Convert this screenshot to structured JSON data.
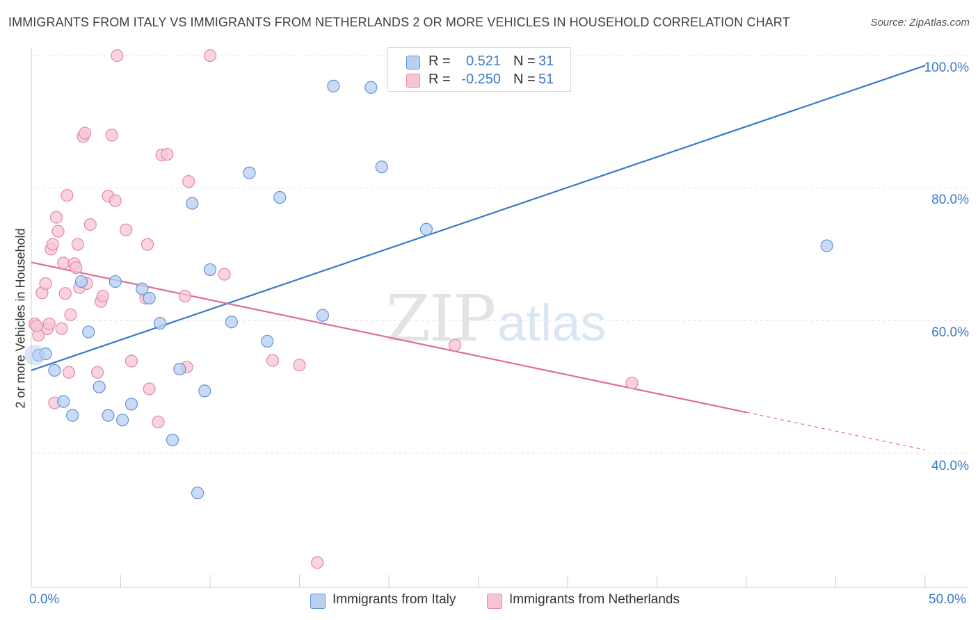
{
  "title": "IMMIGRANTS FROM ITALY VS IMMIGRANTS FROM NETHERLANDS 2 OR MORE VEHICLES IN HOUSEHOLD CORRELATION CHART",
  "source": "Source: ZipAtlas.com",
  "watermark": {
    "zip": "ZIP",
    "atlas": "atlas"
  },
  "legend_top": {
    "r_label": "R =",
    "n_label": "N =",
    "rows": [
      {
        "series": "Immigrants from Italy",
        "r": "0.521",
        "n": "31"
      },
      {
        "series": "Immigrants from Netherlands",
        "r": "-0.250",
        "n": "51"
      }
    ]
  },
  "colors": {
    "italy_fill": "#b8d0f2",
    "italy_stroke": "#5f93d8",
    "italy_line": "#3b78c6",
    "neth_fill": "#f6c5d5",
    "neth_stroke": "#e686a6",
    "neth_line": "#e06b94",
    "grid": "#e4e4e4",
    "tick_text": "#3b78c6"
  },
  "chart_data": {
    "type": "scatter",
    "title": "IMMIGRANTS FROM ITALY VS IMMIGRANTS FROM NETHERLANDS 2 OR MORE VEHICLES IN HOUSEHOLD CORRELATION CHART",
    "xlabel": "",
    "ylabel": "2 or more Vehicles in Household",
    "xlim": [
      0,
      50
    ],
    "ylim": [
      20,
      103
    ],
    "x_tick_labels": [
      {
        "value": 0,
        "label": "0.0%"
      },
      {
        "value": 50,
        "label": "50.0%"
      }
    ],
    "y_tick_labels": [
      {
        "value": 40,
        "label": "40.0%"
      },
      {
        "value": 60,
        "label": "60.0%"
      },
      {
        "value": 80,
        "label": "80.0%"
      },
      {
        "value": 100,
        "label": "100.0%"
      }
    ],
    "x_minor_ticks": [
      0,
      5,
      10,
      15,
      20,
      25,
      30,
      35,
      40,
      45,
      50
    ],
    "grid_y": [
      40,
      60,
      80,
      100
    ],
    "series": [
      {
        "name": "Immigrants from Italy",
        "r": 0.521,
        "n": 31,
        "trend": {
          "x0": 0,
          "y0": 52.5,
          "x1": 50,
          "y1": 98.5,
          "solid_until": 50
        },
        "points": [
          [
            0.4,
            54.8
          ],
          [
            0.8,
            55.0
          ],
          [
            1.3,
            52.5
          ],
          [
            1.8,
            47.8
          ],
          [
            2.3,
            45.7
          ],
          [
            2.8,
            65.9
          ],
          [
            3.2,
            58.3
          ],
          [
            3.8,
            50.0
          ],
          [
            4.3,
            45.7
          ],
          [
            4.7,
            65.9
          ],
          [
            5.1,
            45.0
          ],
          [
            5.6,
            47.4
          ],
          [
            6.2,
            64.8
          ],
          [
            6.6,
            63.4
          ],
          [
            7.2,
            59.6
          ],
          [
            7.9,
            42.0
          ],
          [
            8.3,
            52.7
          ],
          [
            9.0,
            77.7
          ],
          [
            9.3,
            34.0
          ],
          [
            9.7,
            49.4
          ],
          [
            10.0,
            67.7
          ],
          [
            11.2,
            59.8
          ],
          [
            12.2,
            82.3
          ],
          [
            13.2,
            56.9
          ],
          [
            13.9,
            78.6
          ],
          [
            16.3,
            60.8
          ],
          [
            16.9,
            95.4
          ],
          [
            19.0,
            95.2
          ],
          [
            19.6,
            83.2
          ],
          [
            22.1,
            73.8
          ],
          [
            44.5,
            71.3
          ]
        ]
      },
      {
        "name": "Immigrants from Netherlands",
        "r": -0.25,
        "n": 51,
        "trend": {
          "x0": 0,
          "y0": 68.8,
          "x1": 50,
          "y1": 40.5,
          "solid_until": 40
        },
        "points": [
          [
            0.2,
            59.5
          ],
          [
            0.4,
            57.8
          ],
          [
            0.6,
            64.2
          ],
          [
            0.8,
            65.6
          ],
          [
            0.9,
            58.8
          ],
          [
            1.0,
            59.5
          ],
          [
            1.1,
            70.8
          ],
          [
            1.2,
            71.5
          ],
          [
            1.3,
            47.6
          ],
          [
            1.4,
            75.6
          ],
          [
            1.5,
            73.5
          ],
          [
            1.7,
            58.8
          ],
          [
            1.8,
            68.7
          ],
          [
            1.9,
            64.1
          ],
          [
            2.0,
            78.9
          ],
          [
            2.1,
            52.2
          ],
          [
            2.2,
            60.9
          ],
          [
            2.4,
            68.6
          ],
          [
            2.5,
            68.0
          ],
          [
            2.6,
            71.5
          ],
          [
            2.7,
            65.0
          ],
          [
            2.9,
            87.8
          ],
          [
            3.0,
            88.3
          ],
          [
            3.1,
            65.6
          ],
          [
            3.3,
            74.5
          ],
          [
            3.7,
            52.2
          ],
          [
            3.9,
            62.9
          ],
          [
            4.0,
            63.7
          ],
          [
            4.3,
            78.8
          ],
          [
            4.5,
            88.0
          ],
          [
            4.7,
            78.1
          ],
          [
            4.8,
            100.0
          ],
          [
            5.3,
            73.7
          ],
          [
            5.6,
            53.9
          ],
          [
            6.4,
            63.4
          ],
          [
            6.5,
            71.5
          ],
          [
            6.6,
            49.7
          ],
          [
            7.1,
            44.7
          ],
          [
            7.3,
            85.0
          ],
          [
            7.6,
            85.1
          ],
          [
            8.8,
            81.0
          ],
          [
            8.6,
            63.7
          ],
          [
            8.7,
            53.0
          ],
          [
            10.0,
            100.0
          ],
          [
            10.8,
            67.0
          ],
          [
            13.5,
            54.0
          ],
          [
            15.0,
            53.3
          ],
          [
            16.0,
            23.5
          ],
          [
            23.7,
            56.3
          ],
          [
            33.6,
            50.6
          ],
          [
            0.3,
            59.2
          ]
        ]
      }
    ],
    "legend_position": "bottom-center"
  },
  "axis": {
    "y_title": "2 or more Vehicles in Household",
    "y_ticks": [
      "40.0%",
      "60.0%",
      "80.0%",
      "100.0%"
    ],
    "x_left": "0.0%",
    "x_right": "50.0%"
  },
  "legend_bottom": [
    {
      "label": "Immigrants from Italy"
    },
    {
      "label": "Immigrants from Netherlands"
    }
  ]
}
